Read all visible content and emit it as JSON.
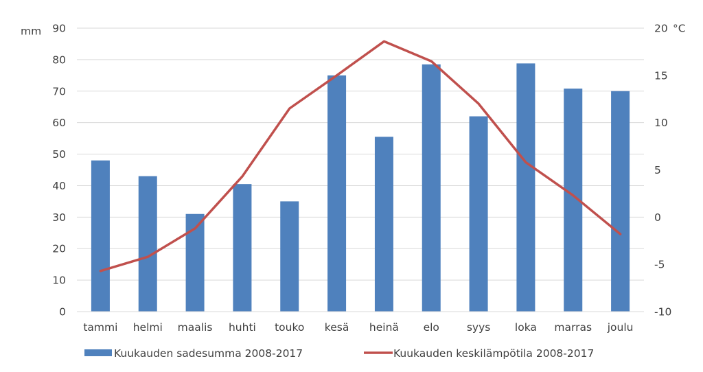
{
  "chart_data": {
    "type": "bar",
    "categories": [
      "tammi",
      "helmi",
      "maalis",
      "huhti",
      "touko",
      "kesä",
      "heinä",
      "elo",
      "syys",
      "loka",
      "marras",
      "joulu"
    ],
    "series": [
      {
        "name": "Kuukauden sadesumma 2008-2017",
        "type": "bar",
        "axis": "left",
        "color": "#4f81bd",
        "values": [
          48,
          43,
          31,
          40.5,
          35,
          75,
          55.5,
          78.5,
          62,
          78.8,
          70.8,
          70
        ]
      },
      {
        "name": "Kuukauden keskilämpötila 2008-2017",
        "type": "line",
        "axis": "right",
        "color": "#c0504d",
        "values": [
          -5.7,
          -4.2,
          -1.2,
          4.3,
          11.5,
          15.0,
          18.6,
          16.5,
          12.0,
          5.8,
          2.3,
          -1.8
        ]
      }
    ],
    "y_left": {
      "unit": "mm",
      "ylim": [
        0,
        90
      ],
      "ticks": [
        0,
        10,
        20,
        30,
        40,
        50,
        60,
        70,
        80,
        90
      ]
    },
    "y_right": {
      "unit": "°C",
      "ylim": [
        -10,
        20
      ],
      "ticks": [
        -10,
        -5,
        0,
        5,
        10,
        15,
        20
      ]
    },
    "grid": true,
    "legend": "bottom"
  }
}
